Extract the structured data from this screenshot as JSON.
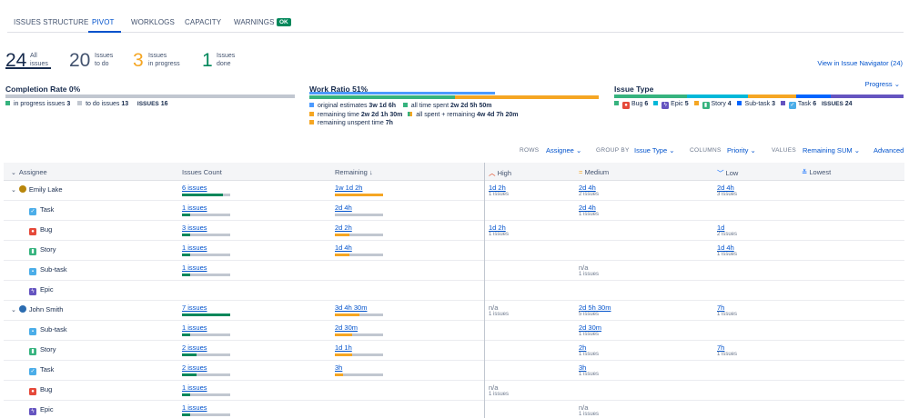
{
  "tabs": [
    {
      "label": "ISSUES STRUCTURE"
    },
    {
      "label": "PIVOT"
    },
    {
      "label": "WORKLOGS"
    },
    {
      "label": "CAPACITY"
    },
    {
      "label": "WARNINGS"
    }
  ],
  "warnings_badge": "OK",
  "counters": [
    {
      "num": "24",
      "label": "All\nissues",
      "color": "#172b4d"
    },
    {
      "num": "20",
      "label": "Issues\nto do",
      "color": "#42526e"
    },
    {
      "num": "3",
      "label": "Issues\nin progress",
      "color": "#f5a623"
    },
    {
      "num": "1",
      "label": "Issues\ndone",
      "color": "#00875a"
    }
  ],
  "view_navigator": "View in Issue Navigator (24)",
  "completion": {
    "title": "Completion Rate",
    "pct": "0%",
    "in_progress_label": "in progress issues",
    "in_progress_val": "3",
    "todo_label": "to do issues",
    "todo_val": "13",
    "issues_label": "ISSUES",
    "issues_val": "16",
    "progress_fraction": 0.0
  },
  "work_ratio": {
    "title": "Work Ratio",
    "pct": "51%",
    "orig_label": "original estimates",
    "orig_val": "3w 1d 6h",
    "spent_label": "all time spent",
    "spent_val": "2w 2d 5h 50m",
    "remaining_label": "remaining time",
    "remaining_val": "2w 2d 1h 30m",
    "all_label": "all spent + remaining",
    "all_val": "4w 4d 7h 20m",
    "unspent_label": "remaining unspent time",
    "unspent_val": "7h"
  },
  "issue_type": {
    "title": "Issue Type",
    "dropdown": "Progress",
    "items": [
      {
        "label": "Bug",
        "val": "6",
        "color": "#e5493a",
        "glyph": "●"
      },
      {
        "label": "Epic",
        "val": "5",
        "color": "#6554c0",
        "glyph": "ϟ"
      },
      {
        "label": "Story",
        "val": "4",
        "color": "#36b37e",
        "glyph": "▮"
      },
      {
        "label": "Sub-task",
        "val": "3",
        "color": "#4bade8",
        "glyph": "▪"
      },
      {
        "label": "Task",
        "val": "6",
        "color": "#4bade8",
        "glyph": "✓"
      }
    ],
    "issues_label": "ISSUES",
    "issues_val": "24"
  },
  "controls": {
    "rows_label": "ROWS",
    "rows_val": "Assignee",
    "group_label": "GROUP BY",
    "group_val": "Issue Type",
    "columns_label": "COLUMNS",
    "columns_val": "Priority",
    "values_label": "VALUES",
    "values_val": "Remaining SUM",
    "advanced": "Advanced"
  },
  "table": {
    "headers": {
      "assignee": "Assignee",
      "count": "Issues Count",
      "remaining": "Remaining",
      "high": "High",
      "medium": "Medium",
      "low": "Low",
      "lowest": "Lowest"
    },
    "rows": [
      {
        "name": "Emily Lake",
        "group": true,
        "icon": "avatar",
        "count": "6 issues",
        "fill": 0.85,
        "fill_color": "#00875a",
        "rem": "1w 1d 2h",
        "rem_fill": 1.0,
        "high": "1d 2h",
        "high_s": "1 issues",
        "medium": "2d 4h",
        "medium_s": "2 issues",
        "low": "2d 4h",
        "low_s": "3 issues"
      },
      {
        "name": "Task",
        "icon": "task",
        "count": "1 issues",
        "fill": 0.17,
        "fill_color": "#00875a",
        "rem": "2d 4h",
        "rem_fill": 0.0,
        "medium": "2d 4h",
        "medium_s": "1 issues"
      },
      {
        "name": "Bug",
        "icon": "bug",
        "count": "3 issues",
        "fill": 0.17,
        "fill_color": "#00875a",
        "rem": "2d 2h",
        "rem_fill": 0.3,
        "high": "1d 2h",
        "high_s": "1 issues",
        "low": "1d",
        "low_s": "2 issues"
      },
      {
        "name": "Story",
        "icon": "story",
        "count": "1 issues",
        "fill": 0.17,
        "fill_color": "#00875a",
        "rem": "1d 4h",
        "rem_fill": 0.3,
        "low": "1d 4h",
        "low_s": "1 issues"
      },
      {
        "name": "Sub-task",
        "icon": "subtask",
        "count": "1 issues",
        "fill": 0.17,
        "fill_color": "#00875a",
        "medium": "n/a",
        "medium_s": "1 issues",
        "medium_na": true
      },
      {
        "name": "Epic",
        "icon": "epic"
      },
      {
        "name": "John Smith",
        "group": true,
        "icon": "avatar2",
        "count": "7 issues",
        "fill": 1.0,
        "fill_color": "#00875a",
        "rem": "3d 4h 30m",
        "rem_fill": 0.5,
        "high": "n/a",
        "high_s": "1 issues",
        "high_na": true,
        "medium": "2d 5h 30m",
        "medium_s": "5 issues",
        "low": "7h",
        "low_s": "1 issues"
      },
      {
        "name": "Sub-task",
        "icon": "subtask",
        "count": "1 issues",
        "fill": 0.17,
        "fill_color": "#00875a",
        "rem": "2d 30m",
        "rem_fill": 0.35,
        "medium": "2d 30m",
        "medium_s": "1 issues"
      },
      {
        "name": "Story",
        "icon": "story",
        "count": "2 issues",
        "fill": 0.3,
        "fill_color": "#00875a",
        "rem": "1d 1h",
        "rem_fill": 0.35,
        "medium": "2h",
        "medium_s": "1 issues",
        "low": "7h",
        "low_s": "1 issues"
      },
      {
        "name": "Task",
        "icon": "task",
        "count": "2 issues",
        "fill": 0.3,
        "fill_color": "#00875a",
        "rem": "3h",
        "rem_fill": 0.17,
        "medium": "3h",
        "medium_s": "1 issues"
      },
      {
        "name": "Bug",
        "icon": "bug",
        "count": "1 issues",
        "fill": 0.17,
        "fill_color": "#00875a",
        "high": "n/a",
        "high_s": "1 issues",
        "high_na": true
      },
      {
        "name": "Epic",
        "icon": "epic",
        "count": "1 issues",
        "fill": 0.17,
        "fill_color": "#00875a",
        "medium": "n/a",
        "medium_s": "1 issues",
        "medium_na": true
      }
    ]
  }
}
